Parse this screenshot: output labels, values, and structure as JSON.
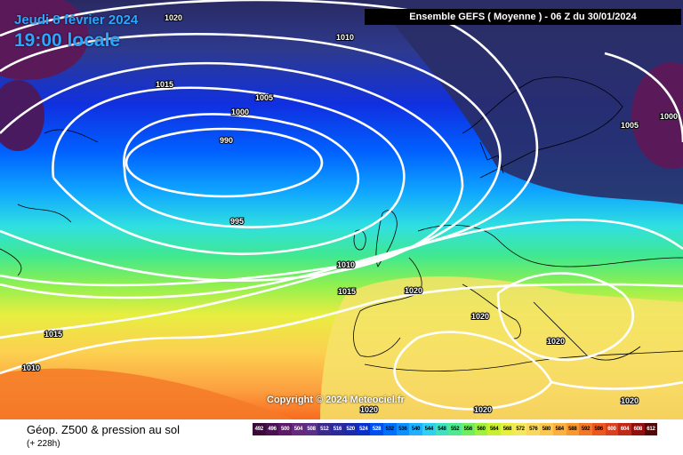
{
  "header": {
    "date": "Jeudi 8 février 2024",
    "time": "19:00 locale",
    "run": "Ensemble GEFS  ( Moyenne )  -  06 Z du 30/01/2024"
  },
  "map": {
    "copyright": "Copyright © 2024 Meteociel.fr",
    "isobar_labels": [
      "1020",
      "1010",
      "1015",
      "1005",
      "1000",
      "990",
      "995",
      "1010",
      "1015",
      "1020",
      "1020",
      "1015",
      "1010",
      "1020",
      "1020",
      "1020",
      "1020",
      "1005",
      "1000"
    ]
  },
  "footer": {
    "title": "Géop. Z500 & pression au sol",
    "step": "(+ 228h)"
  },
  "legend": {
    "values": [
      "492",
      "496",
      "500",
      "504",
      "508",
      "512",
      "516",
      "520",
      "524",
      "528",
      "532",
      "536",
      "540",
      "544",
      "548",
      "552",
      "556",
      "560",
      "564",
      "568",
      "572",
      "576",
      "580",
      "584",
      "588",
      "592",
      "596",
      "600",
      "604",
      "608",
      "612"
    ],
    "colors": [
      "#3a0a3a",
      "#4a1050",
      "#5a1a66",
      "#662a7a",
      "#5a2f88",
      "#3a2a8a",
      "#2a2a99",
      "#1a2aaa",
      "#0a30cc",
      "#0050ee",
      "#0070ff",
      "#1090ff",
      "#20b0ff",
      "#30d0ee",
      "#40e0c0",
      "#50e890",
      "#70ee60",
      "#a0f040",
      "#c8f030",
      "#e8ef40",
      "#f4e860",
      "#f8d860",
      "#fcc850",
      "#fcb040",
      "#f89830",
      "#f07828",
      "#e85820",
      "#d84020",
      "#c02818",
      "#901010",
      "#500808"
    ]
  }
}
